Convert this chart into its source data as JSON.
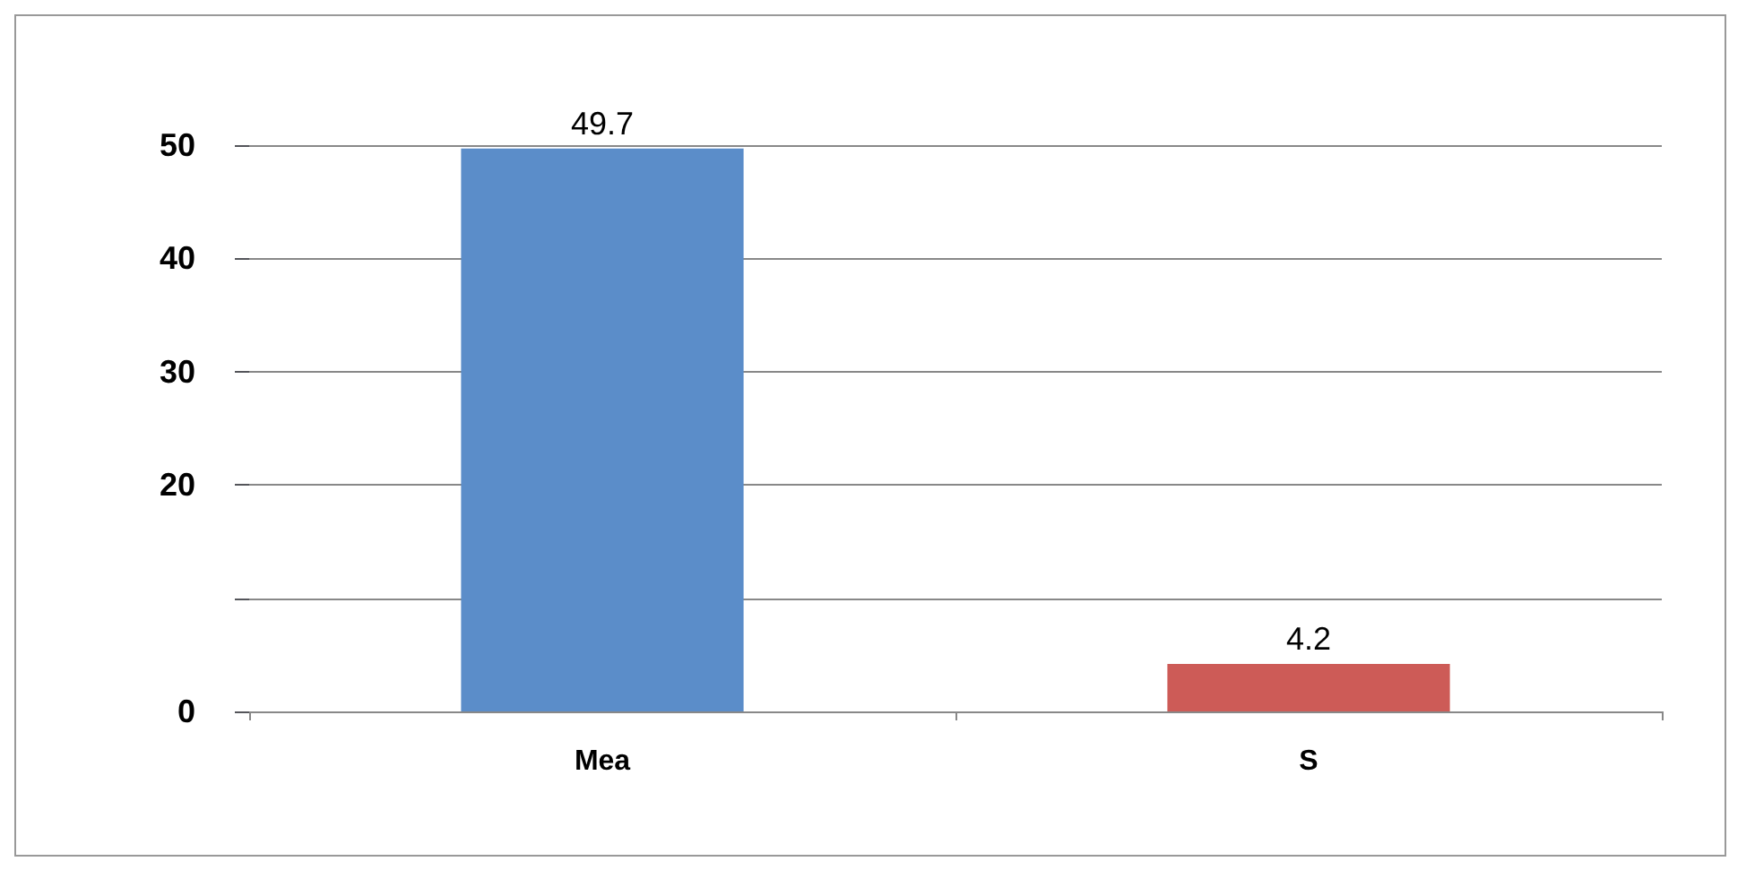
{
  "chart_data": {
    "type": "bar",
    "categories": [
      "Mea",
      "S"
    ],
    "values": [
      49.7,
      4.2
    ],
    "colors": [
      "#5b8dc9",
      "#cd5b57"
    ],
    "ylim": [
      0,
      50
    ],
    "yticks": [
      0,
      {
        "value": 10,
        "label": null
      },
      {
        "value": 20,
        "label": "20"
      },
      {
        "value": 30,
        "label": "30"
      },
      {
        "value": 40,
        "label": "40"
      },
      50
    ],
    "grid": "y",
    "data_labels": true
  }
}
